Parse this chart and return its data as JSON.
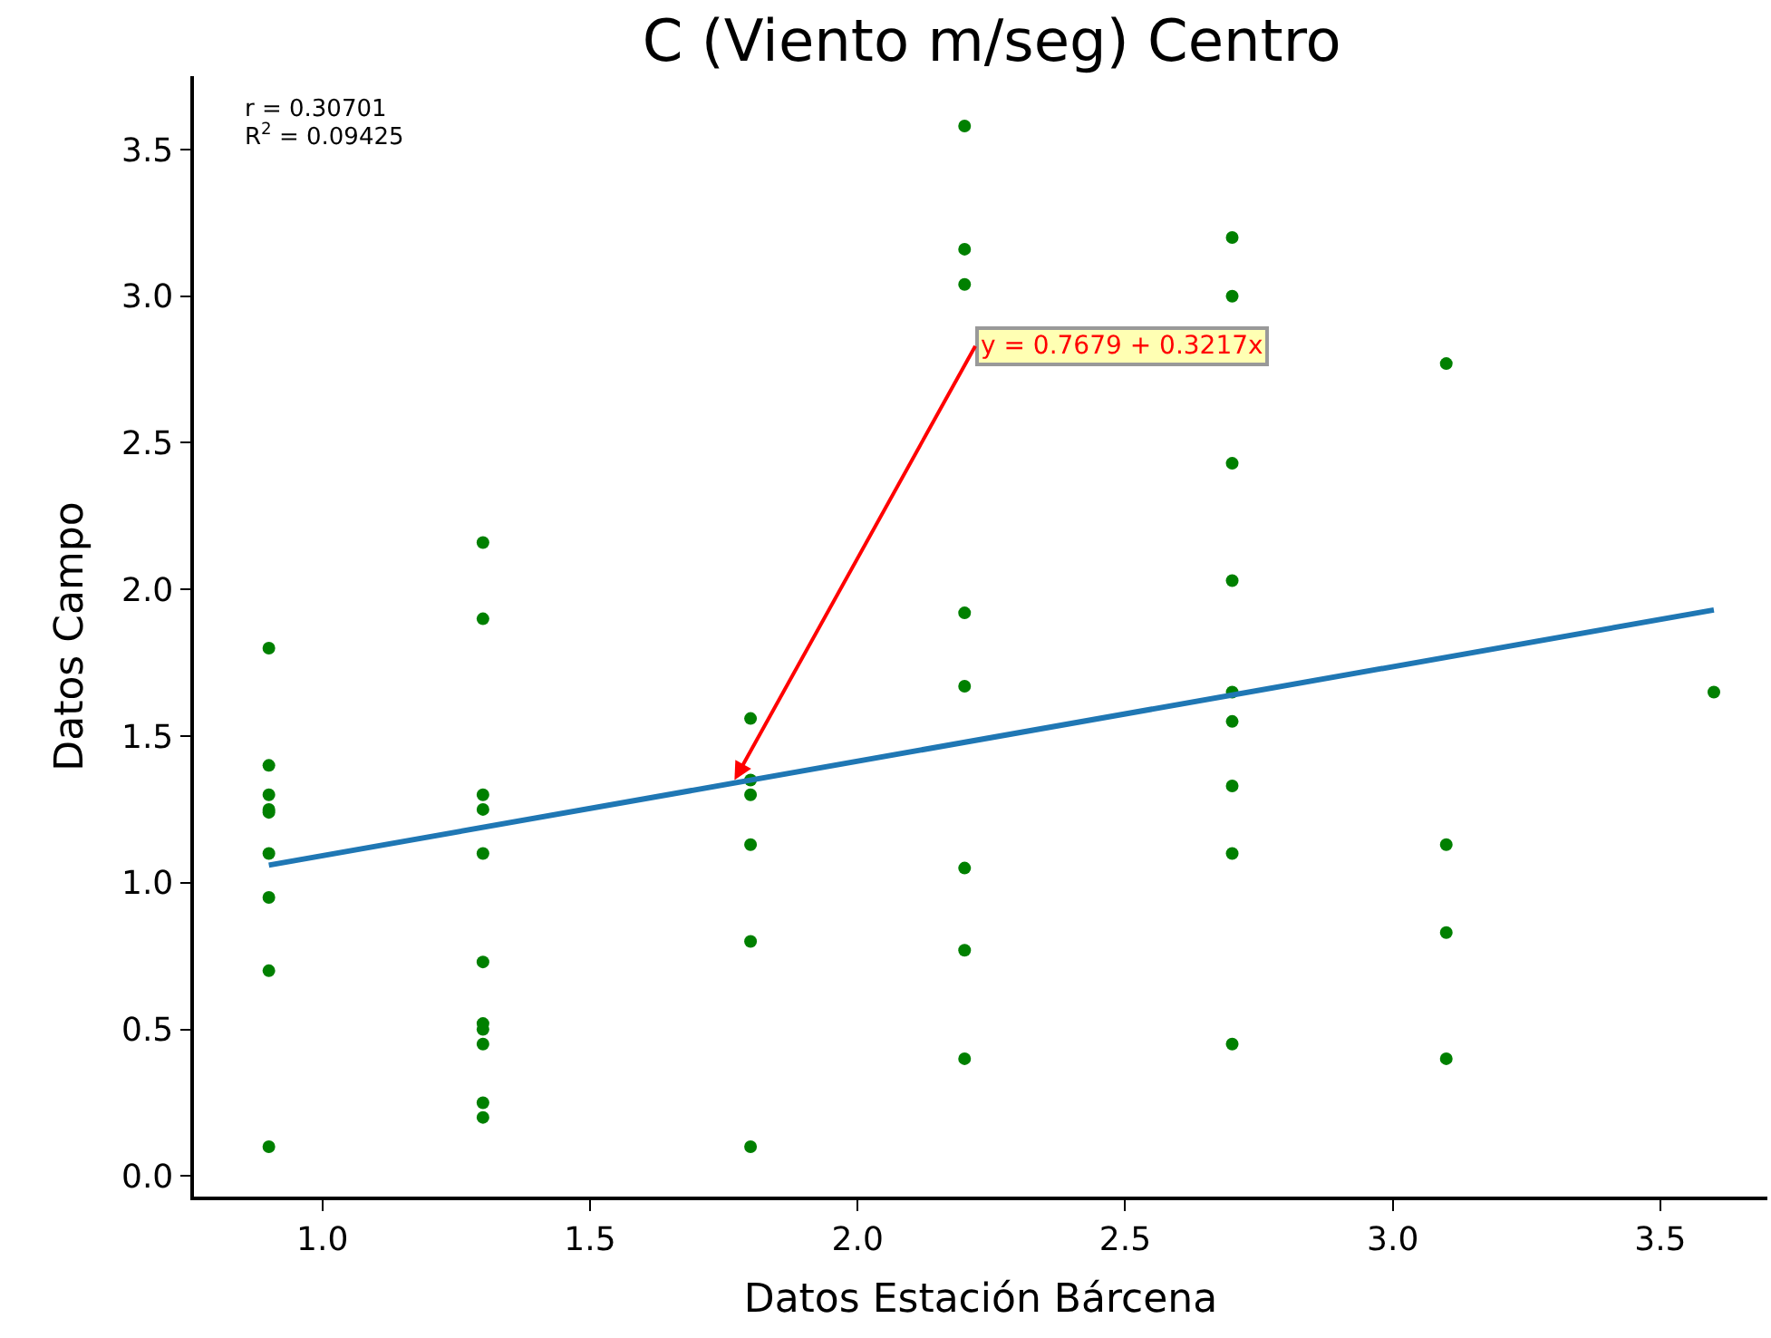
{
  "chart_data": {
    "type": "scatter",
    "title": "C (Viento m/seg) Centro",
    "xlabel": "Datos Estación Bárcena",
    "ylabel": "Datos Campo",
    "series": [
      {
        "color": "#008000",
        "marker": "circle",
        "x": [
          0.9,
          0.9,
          0.9,
          0.9,
          0.9,
          0.9,
          0.9,
          0.9,
          0.9,
          1.3,
          1.3,
          1.3,
          1.3,
          1.3,
          1.3,
          1.3,
          1.3,
          1.3,
          1.3,
          1.3,
          1.8,
          1.8,
          1.8,
          1.8,
          1.8,
          1.8,
          2.2,
          2.2,
          2.2,
          2.2,
          2.2,
          2.2,
          2.2,
          2.2,
          2.7,
          2.7,
          2.7,
          2.7,
          2.7,
          2.7,
          2.7,
          2.7,
          2.7,
          3.1,
          3.1,
          3.1,
          3.1,
          3.6
        ],
        "values": [
          1.8,
          1.4,
          1.3,
          1.25,
          1.24,
          1.1,
          0.95,
          0.7,
          0.1,
          2.16,
          1.9,
          1.3,
          1.25,
          1.1,
          0.73,
          0.52,
          0.5,
          0.45,
          0.25,
          0.2,
          1.56,
          1.35,
          1.3,
          1.13,
          0.8,
          0.1,
          3.58,
          3.16,
          3.04,
          1.92,
          1.67,
          1.05,
          0.77,
          0.4,
          3.2,
          3.0,
          2.43,
          2.03,
          1.65,
          1.55,
          1.33,
          1.1,
          0.45,
          2.77,
          1.13,
          0.83,
          0.4,
          1.65
        ]
      },
      {
        "type": "line",
        "color": "#1f77b4",
        "line_style": "solid",
        "marker": "none",
        "x": [
          0.9,
          3.6
        ],
        "values": [
          1.06,
          1.93
        ]
      }
    ],
    "xlim": [
      0.76,
      3.7
    ],
    "ylim": [
      -0.07,
      3.75
    ],
    "xticks": [
      {
        "value": 1.0,
        "label": "1.0"
      },
      {
        "value": 1.5,
        "label": "1.5"
      },
      {
        "value": 2.0,
        "label": "2.0"
      },
      {
        "value": 2.5,
        "label": "2.5"
      },
      {
        "value": 3.0,
        "label": "3.0"
      },
      {
        "value": 3.5,
        "label": "3.5"
      }
    ],
    "yticks": [
      {
        "value": 0.0,
        "label": "0.0"
      },
      {
        "value": 0.5,
        "label": "0.5"
      },
      {
        "value": 1.0,
        "label": "1.0"
      },
      {
        "value": 1.5,
        "label": "1.5"
      },
      {
        "value": 2.0,
        "label": "2.0"
      },
      {
        "value": 2.5,
        "label": "2.5"
      },
      {
        "value": 3.0,
        "label": "3.0"
      },
      {
        "value": 3.5,
        "label": "3.5"
      }
    ],
    "annotations": [
      "r = 0.30701",
      "R$^{2}$ = 0.09425",
      {
        "text": "y = 0.7679 + 0.3217x",
        "x": 1.77,
        "y": 1.35
      }
    ]
  }
}
